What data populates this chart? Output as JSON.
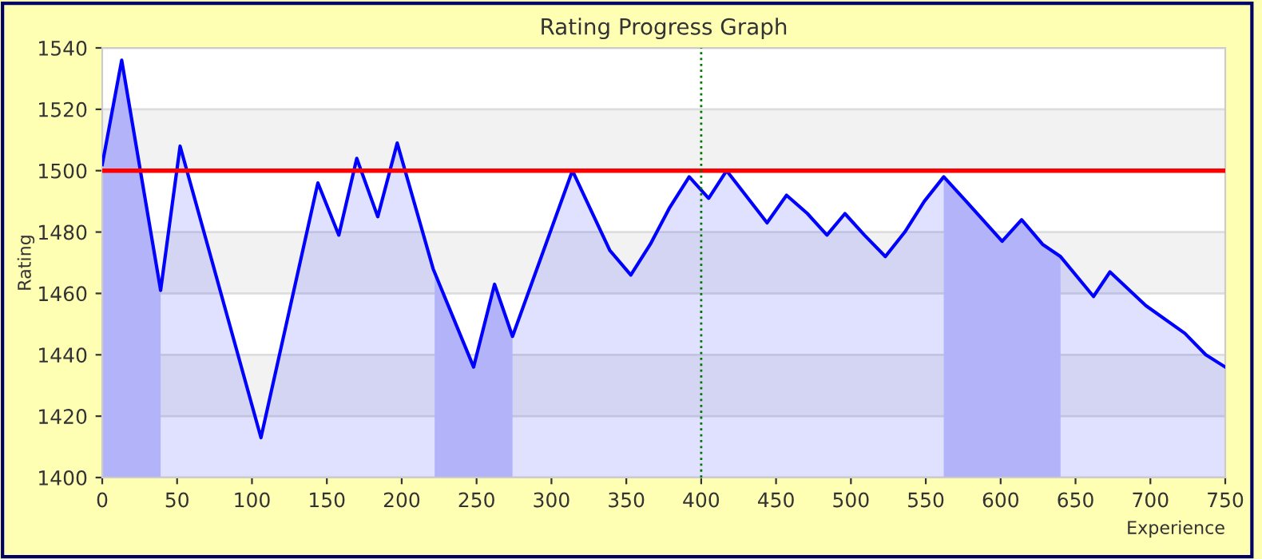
{
  "chart_data": {
    "type": "area",
    "title": "Rating Progress Graph",
    "xlabel": "Experience",
    "ylabel": "Rating",
    "xlim": [
      0,
      750
    ],
    "xticks": [
      0,
      50,
      100,
      150,
      200,
      250,
      300,
      350,
      400,
      450,
      500,
      550,
      600,
      650,
      700,
      750
    ],
    "ylim": [
      1400,
      1540
    ],
    "yticks": [
      1400,
      1420,
      1440,
      1460,
      1480,
      1500,
      1520,
      1540
    ],
    "grid": "y",
    "legend": false,
    "marker": "none",
    "line_style": "solid",
    "series": [
      {
        "color": "#0000ff",
        "x": [
          0,
          13,
          39,
          52,
          106,
          144,
          158,
          170,
          184,
          197,
          221,
          248,
          262,
          274,
          314,
          339,
          353,
          366,
          379,
          392,
          405,
          417,
          444,
          457,
          471,
          484,
          496,
          509,
          523,
          536,
          549,
          562,
          577,
          601,
          614,
          628,
          640,
          662,
          673,
          697,
          723,
          737,
          750
        ],
        "values": [
          1502,
          1536,
          1461,
          1508,
          1413,
          1496,
          1479,
          1504,
          1485,
          1509,
          1468,
          1436,
          1463,
          1446,
          1500,
          1474,
          1466,
          1476,
          1488,
          1498,
          1491,
          1500,
          1483,
          1492,
          1486,
          1479,
          1486,
          1479,
          1472,
          1480,
          1490,
          1498,
          1490,
          1477,
          1484,
          1476,
          1472,
          1459,
          1467,
          1456,
          1447,
          1440,
          1436
        ]
      }
    ],
    "ref_lines": [
      {
        "axis": "y",
        "value": 1500,
        "color": "#ff0000",
        "line_style": "solid"
      },
      {
        "axis": "x",
        "value": 400,
        "color": "#007700",
        "line_style": "dotted"
      }
    ],
    "bands": [
      {
        "axis": "y",
        "from": 1420,
        "to": 1440,
        "color": "#f2f2f2"
      },
      {
        "axis": "y",
        "from": 1460,
        "to": 1480,
        "color": "#f2f2f2"
      },
      {
        "axis": "y",
        "from": 1500,
        "to": 1520,
        "color": "#f2f2f2"
      },
      {
        "axis": "x",
        "from": 0,
        "to": 39,
        "color": "#ccccfa"
      },
      {
        "axis": "x",
        "from": 222,
        "to": 274,
        "color": "#ccccfa"
      },
      {
        "axis": "x",
        "from": 562,
        "to": 640,
        "color": "#ccccfa"
      }
    ]
  }
}
